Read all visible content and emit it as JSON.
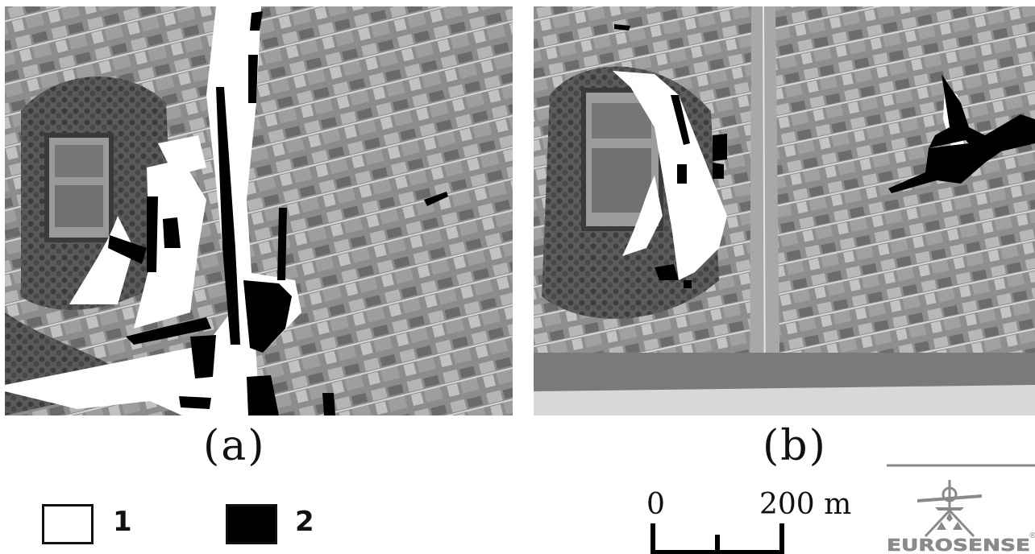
{
  "panels": [
    {
      "caption": "(a)",
      "description": "aerial image with overlay zones"
    },
    {
      "caption": "(b)",
      "description": "aerial image with overlay zones"
    }
  ],
  "legend": [
    {
      "id": "1",
      "label": "1",
      "color": "#ffffff"
    },
    {
      "id": "2",
      "label": "2",
      "color": "#000000"
    }
  ],
  "scale_bar": {
    "start_label": "0",
    "end_label": "200 m"
  },
  "logo": {
    "text": "EUROSENSE",
    "mark": "®"
  }
}
